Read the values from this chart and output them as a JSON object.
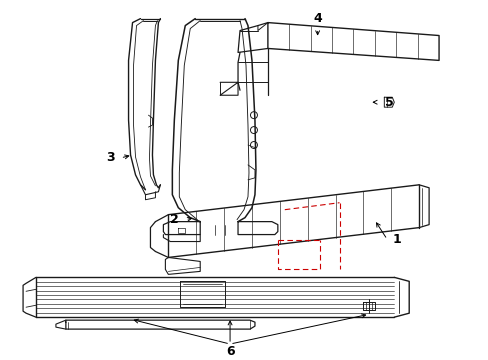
{
  "background": "#ffffff",
  "line_color": "#1a1a1a",
  "red_dash_color": "#cc0000",
  "label_color": "#000000",
  "figsize": [
    4.89,
    3.6
  ],
  "dpi": 100
}
